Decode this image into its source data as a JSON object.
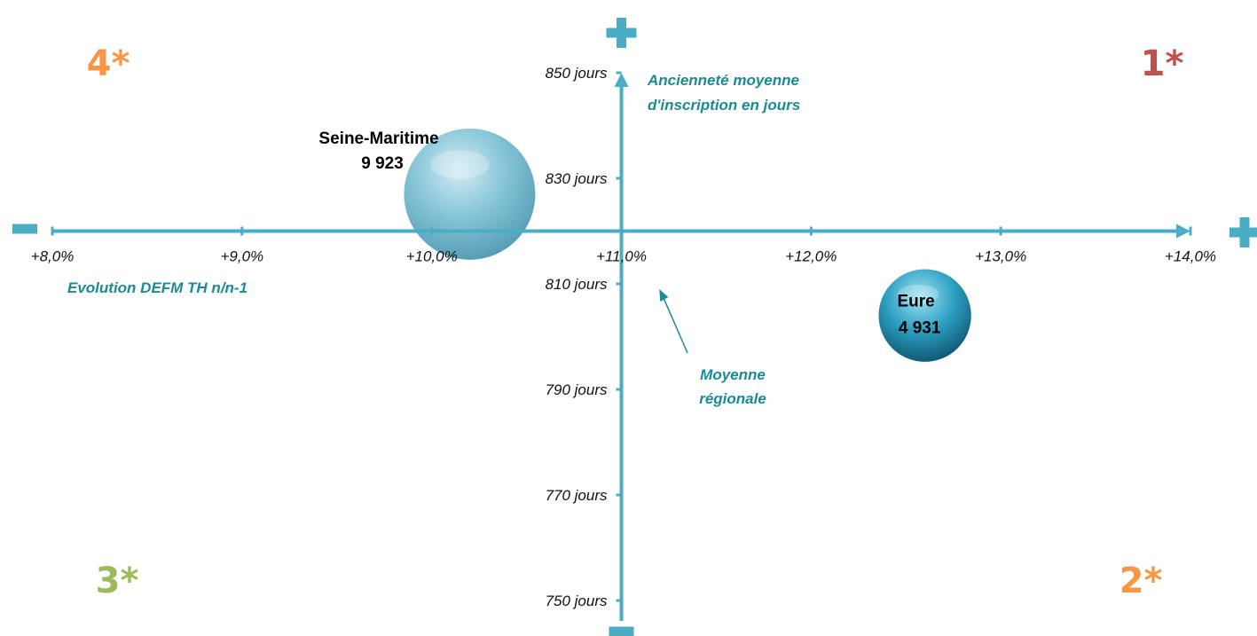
{
  "colors": {
    "axis": "#4bacc6",
    "axis_title": "#1a8a96",
    "quadrant_1": "#c0504d",
    "quadrant_2": "#f79646",
    "quadrant_3": "#9bbb59",
    "quadrant_4": "#f79646"
  },
  "chart_data": {
    "type": "scatter",
    "subtype": "bubble",
    "xlabel": "Evolution DEFM TH  n/n-1",
    "ylabel": "Ancienneté moyenne d'inscription en jours",
    "ylabel_lines": [
      "Ancienneté moyenne",
      "d'inscription en jours"
    ],
    "xlim": [
      8.0,
      14.0
    ],
    "ylim": [
      750,
      850
    ],
    "x_ticks": [
      "+8,0%",
      "+9,0%",
      "+10,0%",
      "+11,0%",
      "+12,0%",
      "+13,0%",
      "+14,0%"
    ],
    "y_ticks": [
      "850 jours",
      "830 jours",
      "810 jours",
      "790 jours",
      "770 jours",
      "750 jours"
    ],
    "crossing": {
      "x": 11.0,
      "y": 820
    },
    "axis_signs": {
      "x_min": "−",
      "x_max": "+",
      "y_max": "+",
      "y_min": "−"
    },
    "series": [
      {
        "points": [
          {
            "label": "Seine-Maritime",
            "value_label": "9 923",
            "x": 10.2,
            "y": 827,
            "size": 9923
          },
          {
            "label": "Eure",
            "value_label": "4 931",
            "x": 12.6,
            "y": 804,
            "size": 4931
          }
        ]
      }
    ],
    "quadrants": [
      {
        "label": "1*",
        "position": "top-right"
      },
      {
        "label": "2*",
        "position": "bottom-right"
      },
      {
        "label": "3*",
        "position": "bottom-left"
      },
      {
        "label": "4*",
        "position": "top-left"
      }
    ],
    "annotation": {
      "lines": [
        "Moyenne",
        "régionale"
      ],
      "target": {
        "x": 11.2,
        "y": 809
      }
    },
    "grid": false,
    "legend": "none"
  }
}
